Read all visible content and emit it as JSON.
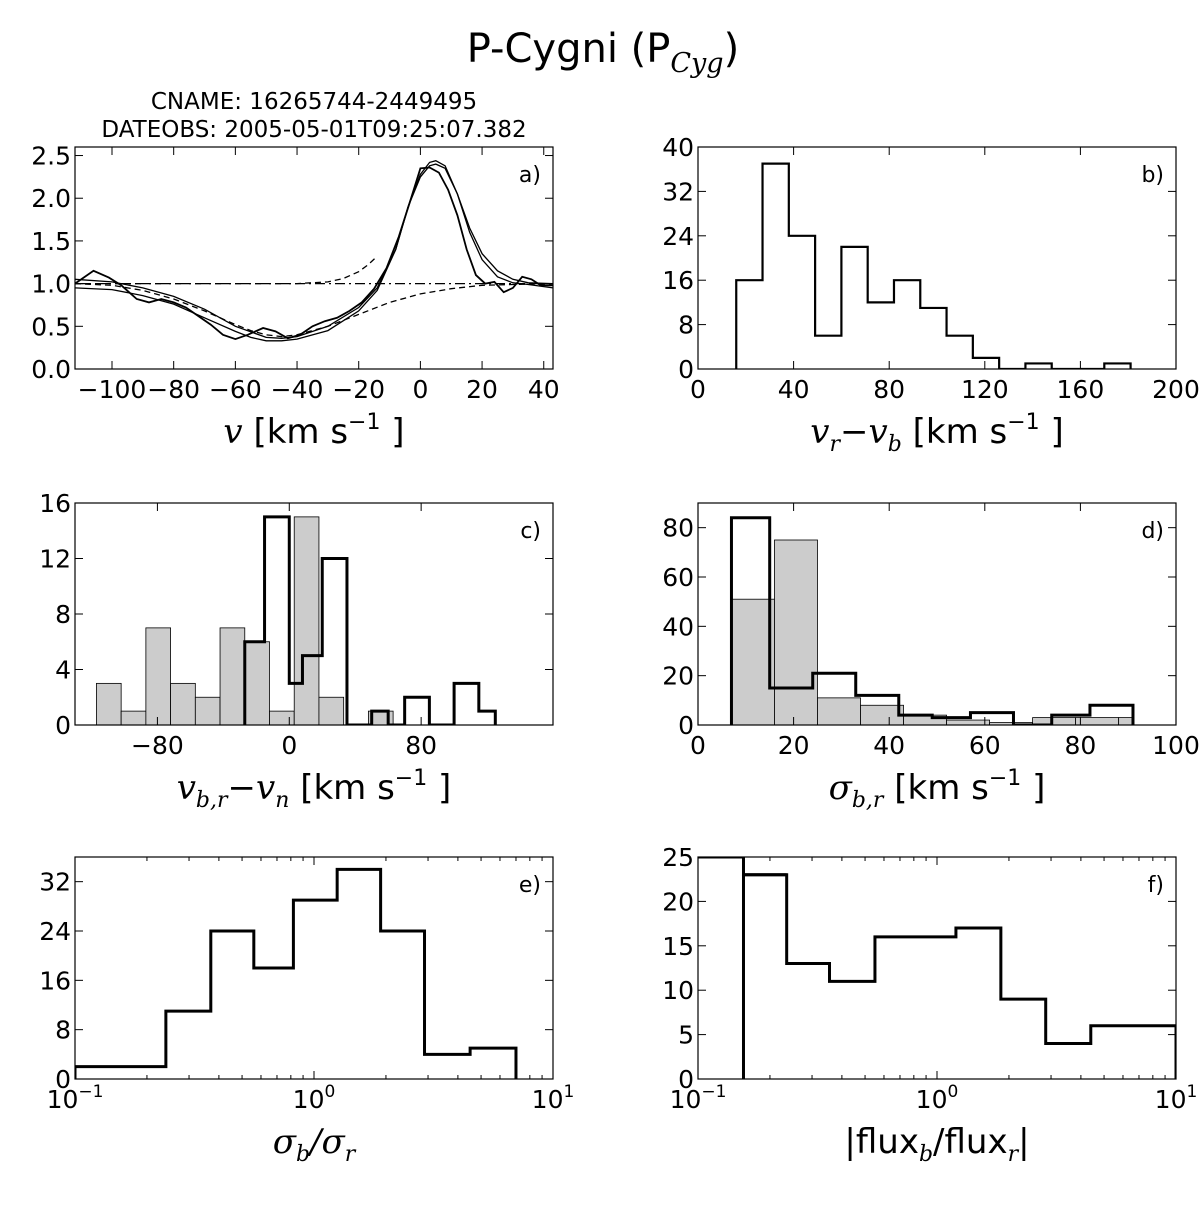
{
  "title": "P-Cygni (P",
  "title_sub": "Cyg",
  "title_close": ")",
  "chart_data": [
    {
      "id": "a",
      "type": "line",
      "panel_label": "a)",
      "header": [
        "CNAME: 16265744-2449495",
        "DATEOBS: 2005-05-01T09:25:07.382"
      ],
      "xlabel": "v",
      "xlabel_unit": "[km s",
      "xlabel_exp": "−1",
      "xlabel_close": "]",
      "xlim": [
        -112,
        43
      ],
      "ylim": [
        0,
        2.6
      ],
      "xticks": [
        -100,
        -80,
        -60,
        -40,
        -20,
        0,
        20,
        40
      ],
      "xtick_labels": [
        "−100",
        "−80",
        "−60",
        "−40",
        "−20",
        "0",
        "20",
        "40"
      ],
      "yticks": [
        0,
        0.5,
        1.0,
        1.5,
        2.0,
        2.5
      ],
      "ytick_labels": [
        "0.0",
        "0.5",
        "1.0",
        "1.5",
        "2.0",
        "2.5"
      ],
      "series": [
        {
          "style": "observed",
          "x": [
            -112,
            -106,
            -101,
            -97,
            -92,
            -88,
            -84,
            -80,
            -76,
            -72,
            -68,
            -64,
            -60,
            -56,
            -51,
            -47,
            -43,
            -39,
            -35,
            -31,
            -27,
            -23,
            -19,
            -15,
            -11,
            -7,
            -3,
            0,
            3,
            6,
            9,
            12,
            15,
            18,
            21,
            24,
            27,
            30,
            33,
            36,
            39,
            43
          ],
          "y": [
            1.0,
            1.15,
            1.07,
            0.98,
            0.82,
            0.78,
            0.82,
            0.78,
            0.72,
            0.62,
            0.52,
            0.4,
            0.35,
            0.4,
            0.48,
            0.44,
            0.36,
            0.4,
            0.5,
            0.56,
            0.6,
            0.68,
            0.78,
            0.94,
            1.18,
            1.55,
            2.0,
            2.35,
            2.36,
            2.3,
            2.1,
            1.8,
            1.4,
            1.1,
            1.0,
            1.02,
            0.9,
            0.95,
            1.08,
            1.05,
            0.98,
            0.98
          ]
        },
        {
          "style": "fit_total",
          "x": [
            -112,
            -100,
            -90,
            -80,
            -70,
            -60,
            -50,
            -45,
            -40,
            -30,
            -20,
            -14,
            -8,
            -4,
            0,
            3,
            5,
            8,
            12,
            16,
            20,
            25,
            30,
            35,
            43
          ],
          "y": [
            1.05,
            1.02,
            0.95,
            0.85,
            0.7,
            0.5,
            0.37,
            0.36,
            0.38,
            0.5,
            0.72,
            0.95,
            1.4,
            1.9,
            2.25,
            2.38,
            2.4,
            2.35,
            2.05,
            1.65,
            1.35,
            1.15,
            1.05,
            1.01,
            1.0
          ]
        },
        {
          "style": "fit_smooth",
          "x": [
            -112,
            -100,
            -90,
            -80,
            -70,
            -60,
            -55,
            -50,
            -45,
            -40,
            -30,
            -20,
            -14,
            -8,
            -4,
            0,
            3,
            5,
            8,
            12,
            16,
            20,
            25,
            30,
            35,
            43
          ],
          "y": [
            0.95,
            0.93,
            0.86,
            0.76,
            0.6,
            0.44,
            0.37,
            0.33,
            0.33,
            0.35,
            0.45,
            0.68,
            0.92,
            1.4,
            1.9,
            2.28,
            2.42,
            2.44,
            2.38,
            2.05,
            1.6,
            1.28,
            1.08,
            1.01,
            0.99,
            0.95
          ]
        },
        {
          "style": "dashed",
          "x": [
            -112,
            -100,
            -90,
            -80,
            -70,
            -60,
            -55,
            -50,
            -45,
            -40,
            -30,
            -20,
            -10,
            0,
            10,
            20,
            30,
            43
          ],
          "y": [
            1.0,
            0.98,
            0.92,
            0.82,
            0.68,
            0.52,
            0.45,
            0.4,
            0.38,
            0.4,
            0.5,
            0.64,
            0.78,
            0.88,
            0.94,
            0.98,
            0.99,
            1.0
          ]
        },
        {
          "style": "dashed",
          "x": [
            -112,
            -40,
            -30,
            -25,
            -20,
            -17,
            -14
          ],
          "y": [
            1.0,
            1.0,
            1.02,
            1.06,
            1.14,
            1.22,
            1.32
          ]
        },
        {
          "style": "dashdot",
          "x": [
            -112,
            43
          ],
          "y": [
            1.0,
            1.0
          ]
        }
      ]
    },
    {
      "id": "b",
      "type": "histogram",
      "panel_label": "b)",
      "xlabel_v1": "v",
      "xlabel_s1": "r",
      "xlabel_minus": "−",
      "xlabel_v2": "v",
      "xlabel_s2": "b",
      "xlabel_unit": "[km s",
      "xlabel_exp": "−1",
      "xlabel_close": "]",
      "xlim": [
        0,
        200
      ],
      "ylim": [
        0,
        40
      ],
      "xticks": [
        0,
        40,
        80,
        120,
        160,
        200
      ],
      "xtick_labels": [
        "0",
        "40",
        "80",
        "120",
        "160",
        "200"
      ],
      "yticks": [
        0,
        8,
        16,
        24,
        32,
        40
      ],
      "ytick_labels": [
        "0",
        "8",
        "16",
        "24",
        "32",
        "40"
      ],
      "bins": [
        16,
        27,
        38,
        49,
        60,
        71,
        82,
        93,
        104,
        115,
        126,
        137,
        148,
        159,
        170,
        181
      ],
      "series": [
        {
          "style": "outline",
          "values": [
            16,
            37,
            24,
            6,
            22,
            12,
            16,
            11,
            6,
            2,
            0,
            1,
            0,
            0,
            1
          ]
        }
      ]
    },
    {
      "id": "c",
      "type": "histogram",
      "panel_label": "c)",
      "xlabel_v1": "v",
      "xlabel_s1": "b,r",
      "xlabel_minus": "−",
      "xlabel_v2": "v",
      "xlabel_s2": "n",
      "xlabel_unit": "[km s",
      "xlabel_exp": "−1",
      "xlabel_close": "]",
      "xlim": [
        -130,
        160
      ],
      "ylim": [
        0,
        16
      ],
      "xticks": [
        -80,
        0,
        80
      ],
      "xtick_labels": [
        "−80",
        "0",
        "80"
      ],
      "yticks": [
        0,
        4,
        8,
        12,
        16
      ],
      "ytick_labels": [
        "0",
        "4",
        "8",
        "12",
        "16"
      ],
      "series": [
        {
          "style": "filled",
          "bins": [
            -117,
            -102,
            -87,
            -72,
            -57,
            -42,
            -27,
            -12,
            3,
            18,
            33,
            48,
            63,
            78
          ],
          "values": [
            3,
            1,
            7,
            3,
            2,
            7,
            6,
            1,
            15,
            2,
            0,
            1,
            0
          ]
        },
        {
          "style": "outline",
          "bins": [
            -27,
            -15,
            0,
            8,
            20,
            35,
            50,
            60,
            70,
            85,
            100,
            115,
            125
          ],
          "values": [
            6,
            15,
            3,
            5,
            12,
            0,
            1,
            0,
            2,
            0,
            3,
            1
          ]
        }
      ]
    },
    {
      "id": "d",
      "type": "histogram",
      "panel_label": "d)",
      "xlabel_v1": "σ",
      "xlabel_s1": "b,r",
      "xlabel_unit": "[km s",
      "xlabel_exp": "−1",
      "xlabel_close": "]",
      "xlim": [
        0,
        100
      ],
      "ylim": [
        0,
        90
      ],
      "xticks": [
        0,
        20,
        40,
        60,
        80,
        100
      ],
      "xtick_labels": [
        "0",
        "20",
        "40",
        "60",
        "80",
        "100"
      ],
      "yticks": [
        0,
        20,
        40,
        60,
        80
      ],
      "ytick_labels": [
        "0",
        "20",
        "40",
        "60",
        "80"
      ],
      "series": [
        {
          "style": "filled",
          "bins": [
            7,
            16,
            25,
            34,
            43,
            52,
            61,
            70,
            79,
            88,
            91
          ],
          "values": [
            51,
            75,
            11,
            8,
            4,
            2,
            1,
            3,
            3,
            3
          ]
        },
        {
          "style": "outline",
          "bins": [
            7,
            15,
            24,
            33,
            42,
            49,
            57,
            66,
            74,
            82,
            91
          ],
          "values": [
            84,
            15,
            21,
            12,
            4,
            3,
            5,
            0,
            4,
            8
          ]
        }
      ]
    },
    {
      "id": "e",
      "type": "histogram",
      "panel_label": "e)",
      "xscale": "log",
      "xlabel_v1": "σ",
      "xlabel_s1": "b",
      "xlabel_slash": "/",
      "xlabel_v2": "σ",
      "xlabel_s2": "r",
      "xlim": [
        0.1,
        10
      ],
      "ylim": [
        0,
        36
      ],
      "xticks": [
        0.1,
        1,
        10
      ],
      "xtick_base": "10",
      "xtick_exps": [
        "−1",
        "0",
        "1"
      ],
      "yticks": [
        0,
        8,
        16,
        24,
        32
      ],
      "ytick_labels": [
        "0",
        "8",
        "16",
        "24",
        "32"
      ],
      "bins": [
        0.1,
        0.24,
        0.37,
        0.56,
        0.82,
        1.25,
        1.9,
        2.9,
        4.5,
        7.0
      ],
      "series": [
        {
          "style": "outline",
          "values": [
            2,
            11,
            24,
            18,
            29,
            34,
            24,
            4,
            5
          ]
        }
      ]
    },
    {
      "id": "f",
      "type": "histogram",
      "panel_label": "f)",
      "xscale": "log",
      "xlabel_pre": "|flux",
      "xlabel_s1": "b",
      "xlabel_mid": "/flux",
      "xlabel_s2": "r",
      "xlabel_post": "|",
      "xlim": [
        0.1,
        10
      ],
      "ylim": [
        0,
        25
      ],
      "xticks": [
        0.1,
        1,
        10
      ],
      "xtick_base": "10",
      "xtick_exps": [
        "−1",
        "0",
        "1"
      ],
      "yticks": [
        0,
        5,
        10,
        15,
        20,
        25
      ],
      "ytick_labels": [
        "0",
        "5",
        "10",
        "15",
        "20",
        "25"
      ],
      "bins": [
        0.155,
        0.235,
        0.355,
        0.55,
        1.2,
        1.85,
        2.85,
        4.4,
        10
      ],
      "series": [
        {
          "style": "outline",
          "values": [
            23,
            13,
            11,
            16,
            17,
            9,
            4,
            6
          ]
        },
        {
          "style": "outline",
          "values": [
            25,
            23
          ],
          "bins": [
            0.1,
            0.155,
            0.235
          ],
          "partial": true
        }
      ]
    }
  ]
}
